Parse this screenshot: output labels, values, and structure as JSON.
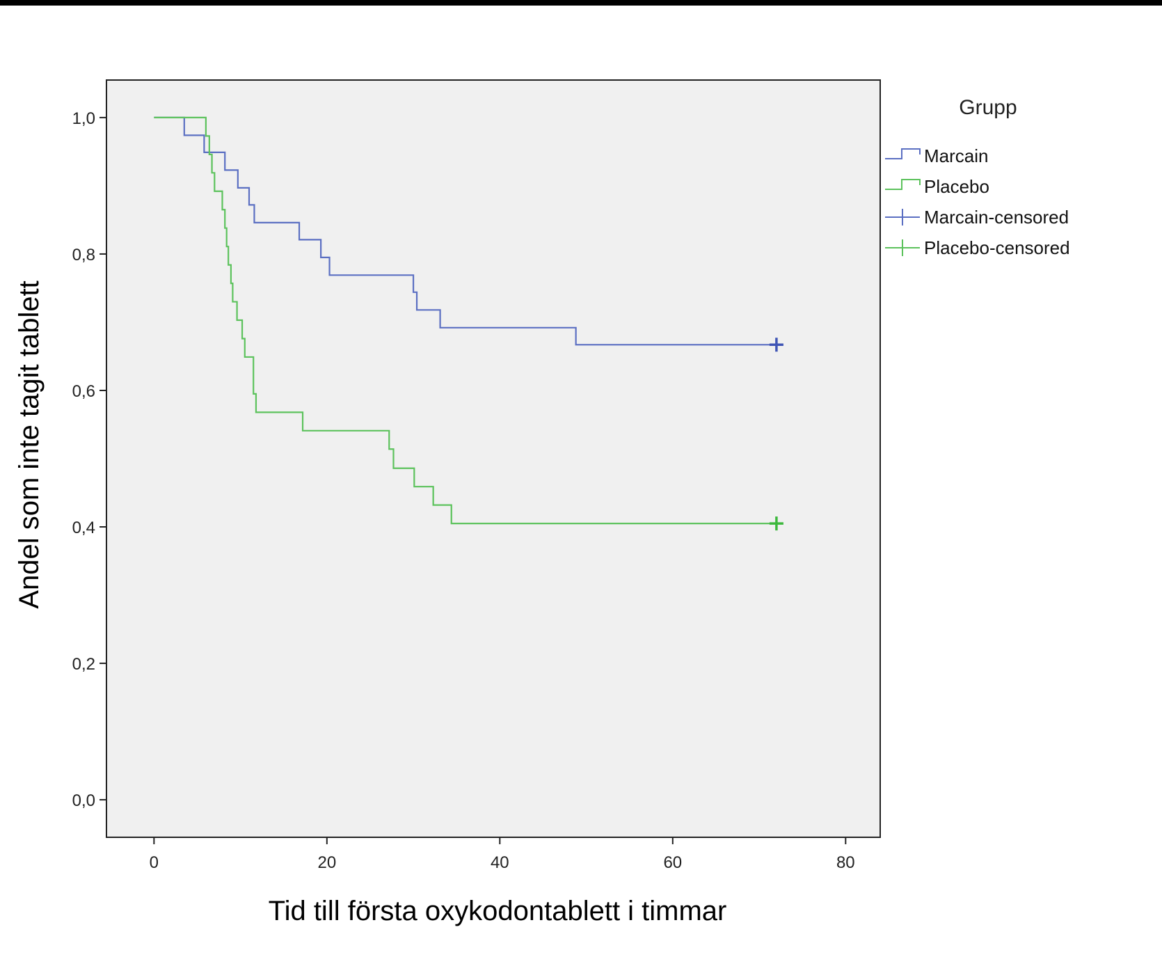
{
  "chart_data": {
    "type": "line",
    "subtype": "kaplan-meier step",
    "xlabel": "Tid till första oxykodontablett i timmar",
    "ylabel": "Andel som inte tagit tablett",
    "xlim": [
      -5.5,
      84
    ],
    "ylim": [
      -0.055,
      1.055
    ],
    "xticks": [
      0,
      20,
      40,
      60,
      80
    ],
    "xtick_labels": [
      "0",
      "20",
      "40",
      "60",
      "80"
    ],
    "yticks": [
      0.0,
      0.2,
      0.4,
      0.6,
      0.8,
      1.0
    ],
    "ytick_labels": [
      "0,0",
      "0,2",
      "0,4",
      "0,6",
      "0,8",
      "1,0"
    ],
    "grid": false,
    "plot_background": "#f0f0f0",
    "legend": {
      "title": "Grupp",
      "placement": "right",
      "entries": [
        {
          "label": "Marcain",
          "kind": "step",
          "color": "#5b6fc2"
        },
        {
          "label": "Placebo",
          "kind": "step",
          "color": "#5cc25c"
        },
        {
          "label": "Marcain-censored",
          "kind": "cross",
          "color": "#5b6fc2"
        },
        {
          "label": "Placebo-censored",
          "kind": "cross",
          "color": "#5cc25c"
        }
      ]
    },
    "series": [
      {
        "name": "Marcain",
        "color": "#5b6fc2",
        "censor_color": "#3f55b5",
        "steps": [
          [
            0,
            1.0
          ],
          [
            3.5,
            0.974
          ],
          [
            5.8,
            0.949
          ],
          [
            8.2,
            0.923
          ],
          [
            9.7,
            0.897
          ],
          [
            11.0,
            0.872
          ],
          [
            11.6,
            0.846
          ],
          [
            16.8,
            0.821
          ],
          [
            19.3,
            0.795
          ],
          [
            20.3,
            0.769
          ],
          [
            30.0,
            0.744
          ],
          [
            30.4,
            0.718
          ],
          [
            33.1,
            0.692
          ],
          [
            48.8,
            0.667
          ]
        ],
        "end_x": 72,
        "censored": [
          [
            72,
            0.667
          ]
        ]
      },
      {
        "name": "Placebo",
        "color": "#5cc25c",
        "censor_color": "#3cb83c",
        "steps": [
          [
            0,
            1.0
          ],
          [
            6.0,
            0.973
          ],
          [
            6.4,
            0.946
          ],
          [
            6.7,
            0.919
          ],
          [
            7.0,
            0.892
          ],
          [
            7.9,
            0.865
          ],
          [
            8.2,
            0.838
          ],
          [
            8.4,
            0.811
          ],
          [
            8.6,
            0.784
          ],
          [
            8.9,
            0.757
          ],
          [
            9.1,
            0.73
          ],
          [
            9.6,
            0.703
          ],
          [
            10.2,
            0.676
          ],
          [
            10.5,
            0.649
          ],
          [
            11.5,
            0.595
          ],
          [
            11.8,
            0.568
          ],
          [
            17.2,
            0.541
          ],
          [
            27.2,
            0.514
          ],
          [
            27.7,
            0.486
          ],
          [
            30.1,
            0.459
          ],
          [
            32.3,
            0.432
          ],
          [
            34.4,
            0.405
          ]
        ],
        "end_x": 72,
        "censored": [
          [
            72,
            0.405
          ]
        ]
      }
    ]
  }
}
